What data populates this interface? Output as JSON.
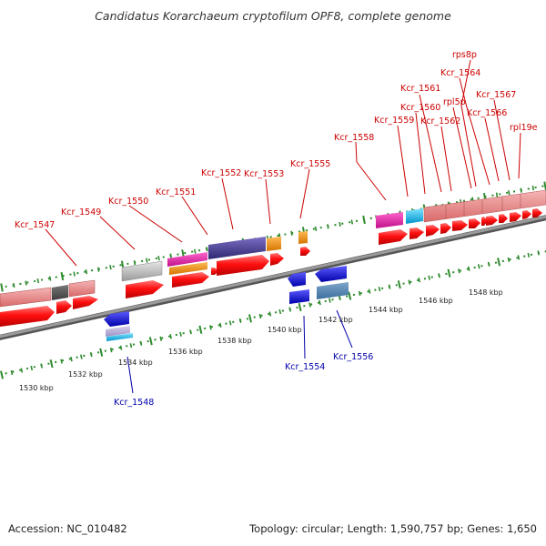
{
  "title": "Candidatus Korarchaeum cryptofilum OPF8, complete genome",
  "accession": "Accession: NC_010482",
  "summary": "Topology: circular; Length: 1,590,757 bp; Genes: 1,650",
  "colors": {
    "forward_label": "#cc0000",
    "reverse_label": "#0000aa",
    "backbone": "#7a7a7a",
    "tick": "#2e8b2e"
  },
  "ticks": [
    "1530 kbp",
    "1532 kbp",
    "1534 kbp",
    "1536 kbp",
    "1538 kbp",
    "1540 kbp",
    "1542 kbp",
    "1544 kbp",
    "1546 kbp",
    "1548 kbp"
  ],
  "forward_labels": [
    "Kcr_1547",
    "Kcr_1549",
    "Kcr_1550",
    "Kcr_1551",
    "Kcr_1552",
    "Kcr_1553",
    "Kcr_1555",
    "Kcr_1558",
    "Kcr_1559",
    "Kcr_1560",
    "Kcr_1561",
    "Kcr_1562",
    "rpl5p",
    "rps8p",
    "Kcr_1564",
    "Kcr_1566",
    "Kcr_1567",
    "rpl19e"
  ],
  "reverse_labels": [
    "Kcr_1548",
    "Kcr_1554",
    "Kcr_1556"
  ]
}
